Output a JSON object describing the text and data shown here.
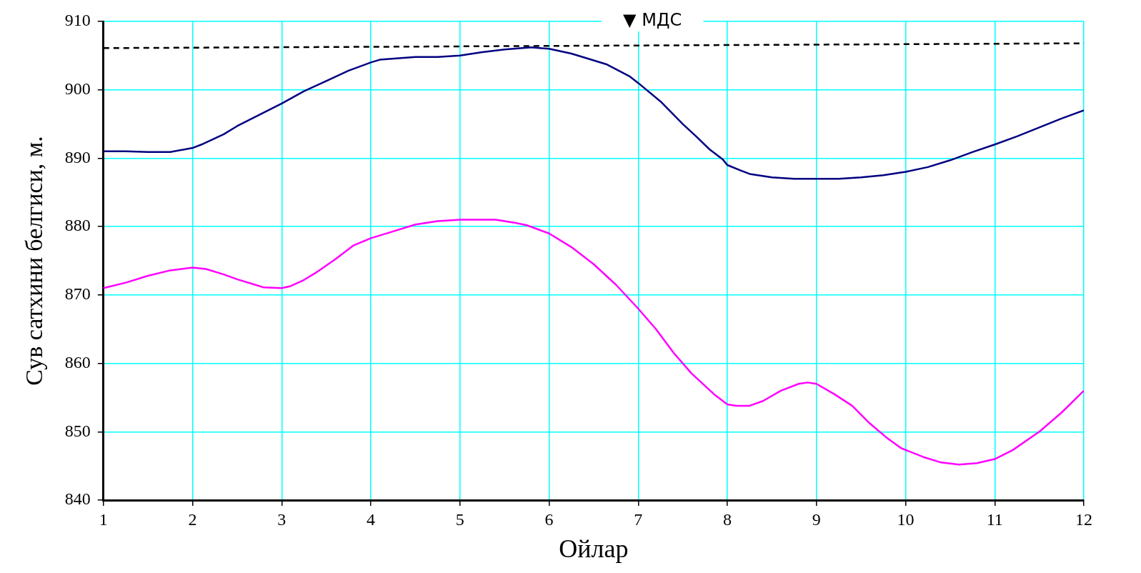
{
  "chart_data": {
    "type": "line",
    "xlabel": "Ойлар",
    "ylabel": "Сув сатхини белгиси, м.",
    "xlim": [
      1,
      12
    ],
    "xticks": [
      1,
      2,
      3,
      4,
      5,
      6,
      7,
      8,
      9,
      10,
      11,
      12
    ],
    "ylim": [
      840,
      910
    ],
    "yticks": [
      840,
      850,
      860,
      870,
      880,
      890,
      900,
      910
    ],
    "grid": true,
    "legend": false,
    "marker": "none",
    "series": [
      {
        "color": "#000080",
        "line_style": "solid",
        "x": [
          1,
          1.25,
          1.5,
          1.75,
          2,
          2.1,
          2.35,
          2.5,
          3,
          3.25,
          3.5,
          3.75,
          4,
          4.1,
          4.5,
          4.75,
          5,
          5.25,
          5.5,
          5.8,
          6,
          6.25,
          6.5,
          6.65,
          6.9,
          7,
          7.25,
          7.5,
          7.65,
          7.8,
          7.95,
          8,
          8.15,
          8.25,
          8.5,
          8.75,
          9,
          9.25,
          9.5,
          9.75,
          10,
          10.25,
          10.5,
          10.75,
          11,
          11.25,
          11.5,
          11.75,
          12
        ],
        "values": [
          891,
          891,
          890.9,
          890.9,
          891.5,
          892,
          893.5,
          894.7,
          898,
          899.8,
          901.3,
          902.8,
          904,
          904.4,
          904.8,
          904.8,
          905,
          905.5,
          905.9,
          906.2,
          906,
          905.3,
          904.3,
          903.7,
          902,
          901,
          898.3,
          895,
          893.2,
          891.3,
          889.8,
          889,
          888.2,
          887.7,
          887.2,
          887,
          887,
          887,
          887.2,
          887.5,
          888,
          888.7,
          889.7,
          890.9,
          892,
          893.2,
          894.5,
          895.8,
          897
        ]
      },
      {
        "color": "#ff00ff",
        "line_style": "solid",
        "x": [
          1,
          1.25,
          1.5,
          1.75,
          2,
          2.15,
          2.35,
          2.5,
          2.7,
          2.8,
          3,
          3.1,
          3.25,
          3.4,
          3.6,
          3.8,
          4,
          4.25,
          4.5,
          4.75,
          5,
          5.25,
          5.4,
          5.6,
          5.75,
          6,
          6.25,
          6.5,
          6.75,
          7,
          7.2,
          7.4,
          7.6,
          7.85,
          8,
          8.1,
          8.25,
          8.4,
          8.6,
          8.8,
          8.9,
          9,
          9.2,
          9.4,
          9.6,
          9.8,
          9.95,
          10.2,
          10.4,
          10.6,
          10.8,
          11,
          11.2,
          11.5,
          11.75,
          12
        ],
        "values": [
          871,
          871.8,
          872.8,
          873.6,
          874,
          873.8,
          873,
          872.3,
          871.5,
          871.1,
          871,
          871.3,
          872.2,
          873.4,
          875.2,
          877.2,
          878.3,
          879.3,
          880.3,
          880.8,
          881,
          881,
          881,
          880.6,
          880.2,
          879,
          877,
          874.5,
          871.5,
          868,
          865,
          861.5,
          858.5,
          855.5,
          854,
          853.8,
          853.8,
          854.5,
          856,
          857,
          857.2,
          857,
          855.5,
          853.8,
          851.2,
          849,
          847.6,
          846.3,
          845.5,
          845.2,
          845.4,
          846,
          847.3,
          850,
          852.8,
          856
        ]
      },
      {
        "name": "▼ МДС",
        "color": "#000000",
        "line_style": "dashed",
        "x": [
          1,
          12
        ],
        "values": [
          906.1,
          906.8
        ]
      }
    ]
  }
}
